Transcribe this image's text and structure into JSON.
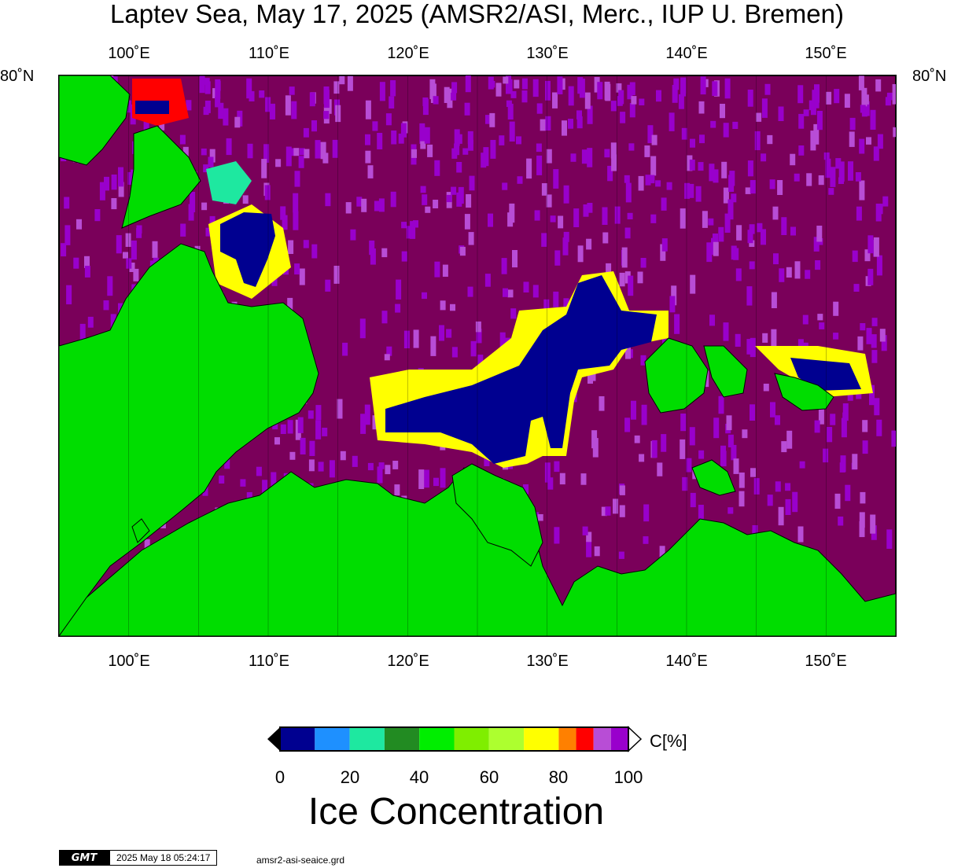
{
  "title": "Laptev Sea, May 17, 2025 (AMSR2/ASI, Merc., IUP U. Bremen)",
  "map": {
    "lon_range": [
      95,
      155
    ],
    "lat_label": "80˚N",
    "lon_labels": [
      "100˚E",
      "110˚E",
      "120˚E",
      "130˚E",
      "140˚E",
      "150˚E"
    ],
    "lon_values": [
      100,
      110,
      120,
      130,
      140,
      150
    ],
    "minor_gridlines_every_deg": 5,
    "colors": {
      "land": "#00dd00",
      "ice_100": "#7a005a",
      "ice_95": "#9900cc",
      "ice_90": "#b84dd6",
      "open_water": "#000090",
      "coast": "#000000"
    }
  },
  "colorbar": {
    "unit_label": "C[%]",
    "tick_labels": [
      "0",
      "20",
      "40",
      "60",
      "80",
      "100"
    ],
    "colors": [
      "#000090",
      "#1e90ff",
      "#1ee8a0",
      "#228b22",
      "#00ee00",
      "#7fee00",
      "#adff2f",
      "#ffff00",
      "#ff8000",
      "#ff0000",
      "#b84dd6",
      "#9900cc"
    ],
    "title": "Ice Concentration"
  },
  "stamp": {
    "logo": "GMT",
    "timestamp": "2025 May 18 05:24:17",
    "file": "amsr2-asi-seaice.grd"
  }
}
